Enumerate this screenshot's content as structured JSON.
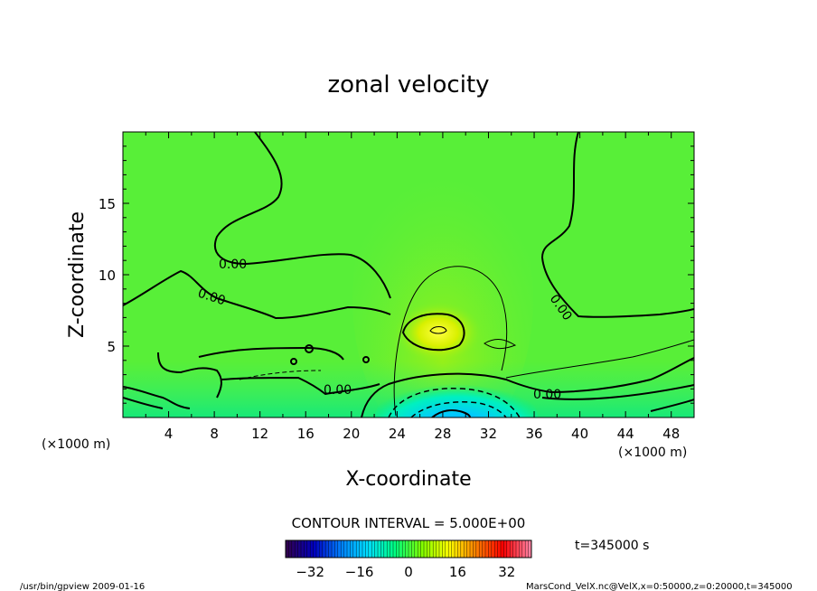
{
  "chart_data": {
    "type": "heatmap",
    "title": "zonal velocity",
    "xlabel": "X-coordinate",
    "ylabel": "Z-coordinate",
    "x_unit_left": "(×1000 m)",
    "x_unit_right": "(×1000 m)",
    "xlim": [
      0,
      50
    ],
    "ylim": [
      0,
      20
    ],
    "x_ticks": [
      4,
      8,
      12,
      16,
      20,
      24,
      28,
      32,
      36,
      40,
      44,
      48
    ],
    "y_ticks": [
      5,
      10,
      15
    ],
    "contour_interval_text": "CONTOUR INTERVAL = 5.000E+00",
    "contour_labels": [
      "0.00",
      "0.00",
      "0.00",
      "0.00",
      "0.00"
    ],
    "time_text": "t=345000 s",
    "colorbar": {
      "range": [
        -40,
        40
      ],
      "ticks": [
        -32,
        -16,
        0,
        16,
        32
      ],
      "colors_low_to_high": [
        "#300050",
        "#0000c0",
        "#0080ff",
        "#00e0ff",
        "#00ff80",
        "#80ff00",
        "#ffff00",
        "#ff8000",
        "#ff0000",
        "#ff80a0"
      ]
    },
    "features": [
      {
        "kind": "max",
        "x": 27.5,
        "z": 6,
        "value": 10
      },
      {
        "kind": "min",
        "x": 29,
        "z": 0.7,
        "value": -12
      }
    ]
  },
  "footer": {
    "left": "/usr/bin/gpview   2009-01-16",
    "right": "MarsCond_VelX.nc@VelX,x=0:50000,z=0:20000,t=345000"
  }
}
